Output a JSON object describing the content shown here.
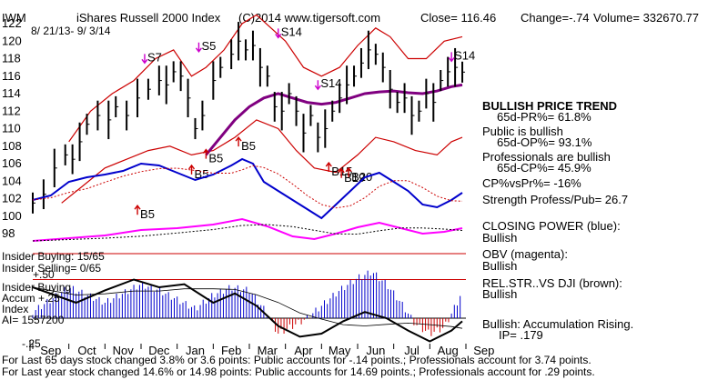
{
  "header": {
    "ticker": "IWM",
    "title": "iShares Russell 2000 Index",
    "copyright": "(C)2014 www.tigersoft.com",
    "close": "Close= 116.46",
    "change": "Change=-.74",
    "volume": "Volume= 332670.77",
    "date_range": "8/ 21/13- 9/ 3/14"
  },
  "colors": {
    "price_bars": "#000000",
    "bands": "#cc0000",
    "ma_65": "#800080",
    "closing_power": "#0000cc",
    "obv": "#ff00ff",
    "rel_strength": "#8b4513",
    "accum_positive": "#0000cc",
    "accum_negative": "#cc0000",
    "signal_buy": "#cc0000",
    "signal_sell": "#cc00cc"
  },
  "chart_data": {
    "type": "line",
    "title": "iShares Russell 2000 Index",
    "y_ticks": [
      "122",
      "120",
      "118",
      "116",
      "114",
      "112",
      "110",
      "108",
      "106",
      "104",
      "102",
      "100",
      "98"
    ],
    "ylim": [
      98,
      122
    ],
    "x_ticks": [
      "Sep",
      "Oct",
      "Nov",
      "Dec",
      "Jan",
      "Feb",
      "Mar",
      "Apr",
      "May",
      "Jun",
      "Jul",
      "Aug",
      "Sep"
    ],
    "x_months": [
      0,
      1,
      2,
      3,
      4,
      5,
      6,
      7,
      8,
      9,
      10,
      11,
      12
    ],
    "price_close": [
      [
        0.0,
        101.5
      ],
      [
        0.3,
        102.5
      ],
      [
        0.6,
        105.5
      ],
      [
        0.9,
        107.0
      ],
      [
        1.1,
        106.5
      ],
      [
        1.3,
        108.5
      ],
      [
        1.5,
        110.5
      ],
      [
        1.8,
        111.5
      ],
      [
        2.1,
        111.0
      ],
      [
        2.3,
        112.5
      ],
      [
        2.6,
        111.5
      ],
      [
        2.9,
        113.5
      ],
      [
        3.2,
        114.5
      ],
      [
        3.5,
        115.5
      ],
      [
        3.7,
        115.0
      ],
      [
        3.9,
        116.5
      ],
      [
        4.1,
        116.0
      ],
      [
        4.3,
        113.5
      ],
      [
        4.5,
        110.0
      ],
      [
        4.7,
        111.5
      ],
      [
        5.0,
        115.5
      ],
      [
        5.2,
        117.0
      ],
      [
        5.5,
        118.5
      ],
      [
        5.7,
        120.0
      ],
      [
        5.9,
        119.0
      ],
      [
        6.1,
        119.5
      ],
      [
        6.3,
        117.0
      ],
      [
        6.5,
        116.0
      ],
      [
        6.7,
        112.5
      ],
      [
        6.9,
        112.0
      ],
      [
        7.1,
        114.0
      ],
      [
        7.3,
        112.0
      ],
      [
        7.5,
        109.5
      ],
      [
        7.7,
        111.5
      ],
      [
        7.9,
        109.0
      ],
      [
        8.1,
        110.0
      ],
      [
        8.3,
        112.0
      ],
      [
        8.5,
        113.5
      ],
      [
        8.7,
        115.0
      ],
      [
        8.9,
        116.0
      ],
      [
        9.1,
        117.5
      ],
      [
        9.3,
        119.0
      ],
      [
        9.5,
        118.5
      ],
      [
        9.7,
        117.0
      ],
      [
        9.9,
        114.5
      ],
      [
        10.1,
        113.0
      ],
      [
        10.3,
        113.5
      ],
      [
        10.5,
        111.5
      ],
      [
        10.7,
        112.0
      ],
      [
        10.9,
        114.0
      ],
      [
        11.1,
        113.0
      ],
      [
        11.3,
        115.5
      ],
      [
        11.5,
        116.5
      ],
      [
        11.7,
        117.0
      ],
      [
        11.9,
        116.46
      ]
    ],
    "ma_65": [
      [
        4.8,
        107.0
      ],
      [
        5.2,
        109.0
      ],
      [
        5.6,
        111.0
      ],
      [
        6.0,
        112.5
      ],
      [
        6.4,
        113.5
      ],
      [
        6.8,
        114.0
      ],
      [
        7.2,
        113.5
      ],
      [
        7.6,
        113.0
      ],
      [
        8.0,
        112.8
      ],
      [
        8.4,
        113.0
      ],
      [
        8.8,
        113.5
      ],
      [
        9.2,
        114.0
      ],
      [
        9.6,
        114.2
      ],
      [
        10.0,
        114.3
      ],
      [
        10.4,
        114.1
      ],
      [
        10.8,
        114.0
      ],
      [
        11.2,
        114.3
      ],
      [
        11.6,
        114.8
      ],
      [
        11.9,
        115.0
      ]
    ],
    "upper_band": [
      [
        1.0,
        108.5
      ],
      [
        1.6,
        112.0
      ],
      [
        2.2,
        114.0
      ],
      [
        2.8,
        115.5
      ],
      [
        3.4,
        118.0
      ],
      [
        3.9,
        119.0
      ],
      [
        4.4,
        116.0
      ],
      [
        4.8,
        117.0
      ],
      [
        5.3,
        119.0
      ],
      [
        5.8,
        122.0
      ],
      [
        6.2,
        123.0
      ],
      [
        6.6,
        121.5
      ],
      [
        7.0,
        120.0
      ],
      [
        7.5,
        117.0
      ],
      [
        8.0,
        116.0
      ],
      [
        8.5,
        117.0
      ],
      [
        9.0,
        119.5
      ],
      [
        9.5,
        121.5
      ],
      [
        9.9,
        120.5
      ],
      [
        10.4,
        118.0
      ],
      [
        10.9,
        118.0
      ],
      [
        11.4,
        120.0
      ],
      [
        11.9,
        120.5
      ]
    ],
    "lower_band": [
      [
        0.8,
        101.5
      ],
      [
        1.4,
        103.5
      ],
      [
        2.0,
        105.5
      ],
      [
        2.6,
        106.5
      ],
      [
        3.2,
        107.5
      ],
      [
        3.8,
        108.0
      ],
      [
        4.4,
        107.0
      ],
      [
        5.0,
        107.5
      ],
      [
        5.6,
        109.0
      ],
      [
        6.2,
        111.0
      ],
      [
        6.8,
        110.0
      ],
      [
        7.3,
        107.5
      ],
      [
        7.8,
        105.5
      ],
      [
        8.4,
        105.0
      ],
      [
        9.0,
        107.0
      ],
      [
        9.5,
        109.0
      ],
      [
        10.0,
        108.5
      ],
      [
        10.6,
        107.5
      ],
      [
        11.2,
        107.0
      ],
      [
        11.6,
        108.5
      ],
      [
        11.9,
        109.0
      ]
    ],
    "signals": [
      {
        "label": "S7",
        "month": 3.1,
        "price": 117.5
      },
      {
        "label": "S5",
        "month": 4.6,
        "price": 118.8
      },
      {
        "label": "S14",
        "month": 6.8,
        "price": 120.4
      },
      {
        "label": "S14",
        "month": 7.9,
        "price": 114.5
      },
      {
        "label": "S14",
        "month": 11.6,
        "price": 117.7
      },
      {
        "label": "B5",
        "month": 2.9,
        "price": 101.2
      },
      {
        "label": "B5",
        "month": 4.4,
        "price": 105.8
      },
      {
        "label": "B5",
        "month": 4.8,
        "price": 107.6
      },
      {
        "label": "B5",
        "month": 5.7,
        "price": 109.0
      },
      {
        "label": "B15",
        "month": 8.2,
        "price": 106.1
      },
      {
        "label": "B19",
        "month": 8.55,
        "price": 105.4
      },
      {
        "label": "B20",
        "month": 8.75,
        "price": 105.5
      }
    ],
    "closing_power": [
      [
        0.0,
        1.0
      ],
      [
        0.5,
        1.5
      ],
      [
        1.0,
        3.0
      ],
      [
        1.5,
        3.5
      ],
      [
        2.0,
        3.8
      ],
      [
        2.5,
        4.2
      ],
      [
        3.0,
        5.0
      ],
      [
        3.5,
        4.8
      ],
      [
        4.0,
        4.0
      ],
      [
        4.5,
        3.2
      ],
      [
        5.0,
        3.8
      ],
      [
        5.5,
        4.8
      ],
      [
        5.8,
        5.5
      ],
      [
        6.1,
        5.0
      ],
      [
        6.4,
        3.0
      ],
      [
        6.8,
        2.0
      ],
      [
        7.2,
        1.0
      ],
      [
        7.6,
        0.0
      ],
      [
        8.0,
        -1.0
      ],
      [
        8.4,
        0.5
      ],
      [
        8.8,
        2.0
      ],
      [
        9.2,
        3.5
      ],
      [
        9.6,
        4.0
      ],
      [
        10.0,
        3.0
      ],
      [
        10.4,
        2.0
      ],
      [
        10.8,
        0.5
      ],
      [
        11.2,
        0.2
      ],
      [
        11.6,
        1.0
      ],
      [
        11.9,
        1.8
      ]
    ],
    "obv": [
      [
        0.0,
        1.0
      ],
      [
        1.0,
        1.3
      ],
      [
        2.0,
        1.6
      ],
      [
        3.0,
        2.2
      ],
      [
        4.0,
        2.4
      ],
      [
        5.0,
        2.8
      ],
      [
        5.8,
        3.4
      ],
      [
        6.5,
        2.6
      ],
      [
        7.2,
        1.5
      ],
      [
        7.8,
        1.2
      ],
      [
        8.4,
        1.8
      ],
      [
        9.0,
        2.5
      ],
      [
        9.6,
        3.0
      ],
      [
        10.2,
        2.4
      ],
      [
        10.8,
        1.8
      ],
      [
        11.4,
        2.0
      ],
      [
        11.9,
        2.4
      ]
    ],
    "accum_index": [
      [
        0.0,
        0.04
      ],
      [
        0.5,
        0.12
      ],
      [
        1.0,
        0.2
      ],
      [
        1.5,
        0.15
      ],
      [
        2.0,
        0.1
      ],
      [
        2.5,
        0.16
      ],
      [
        3.0,
        0.22
      ],
      [
        3.5,
        0.18
      ],
      [
        4.0,
        0.12
      ],
      [
        4.5,
        0.06
      ],
      [
        5.0,
        0.15
      ],
      [
        5.5,
        0.2
      ],
      [
        6.0,
        0.18
      ],
      [
        6.4,
        0.06
      ],
      [
        6.8,
        -0.1
      ],
      [
        7.2,
        -0.05
      ],
      [
        7.6,
        0.0
      ],
      [
        8.0,
        0.08
      ],
      [
        8.5,
        0.18
      ],
      [
        9.0,
        0.26
      ],
      [
        9.4,
        0.3
      ],
      [
        9.8,
        0.22
      ],
      [
        10.2,
        0.1
      ],
      [
        10.6,
        -0.04
      ],
      [
        11.0,
        -0.1
      ],
      [
        11.4,
        -0.06
      ],
      [
        11.8,
        0.12
      ],
      [
        11.9,
        0.179
      ]
    ],
    "rel_strength": [
      [
        0.0,
        0.2
      ],
      [
        0.6,
        0.15
      ],
      [
        1.2,
        0.1
      ],
      [
        2.0,
        0.18
      ],
      [
        2.8,
        0.25
      ],
      [
        3.5,
        0.2
      ],
      [
        4.2,
        0.22
      ],
      [
        5.0,
        0.1
      ],
      [
        5.6,
        0.16
      ],
      [
        6.2,
        0.08
      ],
      [
        6.8,
        -0.05
      ],
      [
        7.4,
        -0.12
      ],
      [
        8.0,
        -0.1
      ],
      [
        8.6,
        -0.02
      ],
      [
        9.2,
        0.04
      ],
      [
        9.8,
        0.0
      ],
      [
        10.4,
        -0.08
      ],
      [
        11.0,
        -0.15
      ],
      [
        11.6,
        -0.08
      ],
      [
        11.9,
        -0.02
      ]
    ],
    "accum_labels": {
      "insider_buying": "Insider Buying: 15/65",
      "insider_selling": "Insider Selling= 0/65",
      "plus50": "+.50",
      "insider_buying2": "Insider Buying",
      "accum": "Accum",
      "plus25": "+.25",
      "index": "Index",
      "ai": "AI= 1557200",
      "minus25": "-.25"
    }
  },
  "right_panel": {
    "trend_title": "BULLISH PRICE TREND",
    "pr": "65d-PR%= 61.8%",
    "public": "Public is bullish",
    "op": "65d-OP%= 93.1%",
    "pros": "Professionals are bullish",
    "cp": "65d-CP%= 45.9%",
    "cpvspr": "CP%vsPr%= -16%",
    "strength": "Strength Profess/Pub= 26.7",
    "closing_power_title": "CLOSING POWER (blue):",
    "closing_power_value": "Bullish",
    "obv_title": "OBV (magenta):",
    "obv_value": "Bullish",
    "relstr_title": "REL.STR..VS DJI (brown):",
    "relstr_value": "Bullish",
    "accum_title": "Bullish: Accumulation Rising.",
    "ip": "IP= .179"
  },
  "footer": {
    "line1": "For Last 65 days stock changed 3.8% or 3.6 points: Public accounts for -.14 points.; Professionals account for 3.74 points.",
    "line2": "For Last year stock changed 14.6% or 14.98 points: Public accounts for 14.69 points.; Professionals account for .29 points."
  }
}
